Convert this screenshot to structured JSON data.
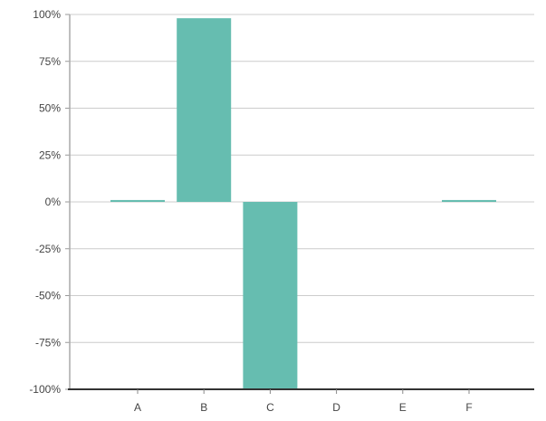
{
  "chart_data": {
    "type": "bar",
    "categories": [
      "A",
      "B",
      "C",
      "D",
      "E",
      "F"
    ],
    "values": [
      1,
      98,
      -100,
      0,
      0,
      1
    ],
    "y_ticks": [
      100,
      75,
      50,
      25,
      0,
      -25,
      -50,
      -75,
      -100
    ],
    "y_tick_labels": [
      "100%",
      "75%",
      "50%",
      "25%",
      "0%",
      "-25%",
      "-50%",
      "-75%",
      "-100%"
    ],
    "ylim": [
      -100,
      100
    ],
    "grid": true,
    "bar_color": "#66bdb0",
    "axis_color": "#333333",
    "grid_color": "#cccccc"
  }
}
